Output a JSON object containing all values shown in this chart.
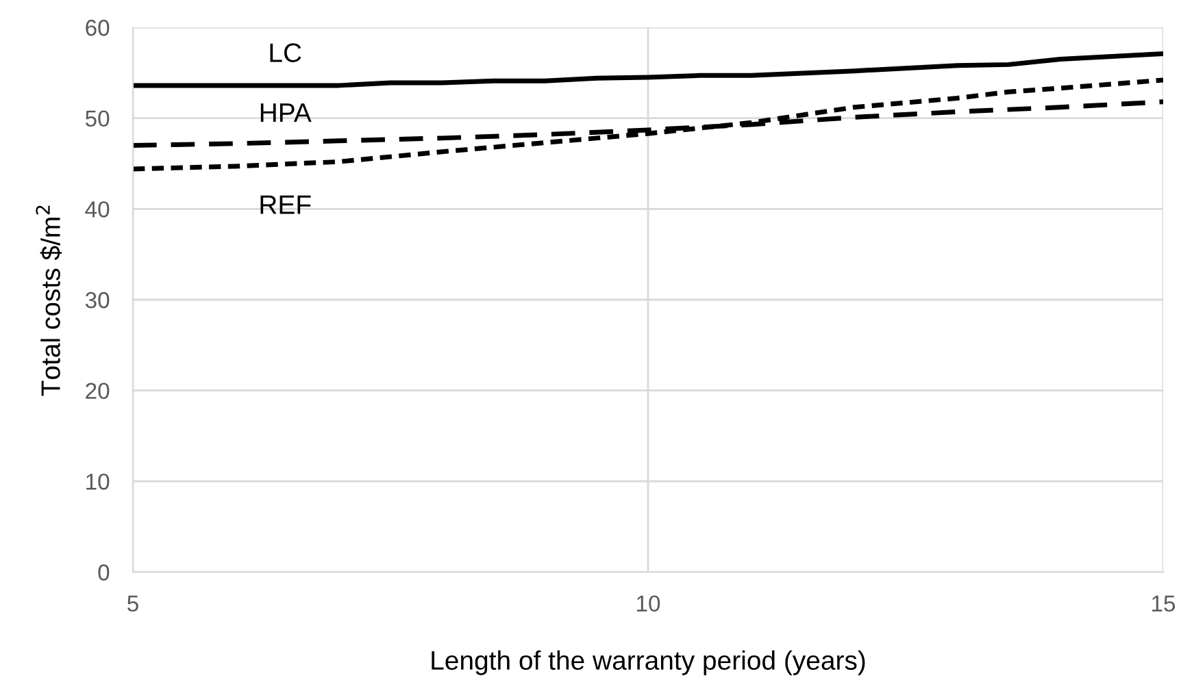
{
  "chart_data": {
    "type": "line",
    "xlabel": "Length of the warranty period (years)",
    "ylabel": "Total costs $/m$^{2}$",
    "xlim": [
      5,
      15
    ],
    "xticks": [
      5,
      10,
      15
    ],
    "ylim": [
      0,
      60
    ],
    "yticks": [
      0,
      10,
      20,
      30,
      40,
      50,
      60
    ],
    "grid": true,
    "legend": false,
    "series": [
      {
        "name": "LC",
        "color": "#000000",
        "line_style": "solid",
        "x": [
          5,
          7,
          7.5,
          8,
          8.5,
          9,
          9.5,
          10,
          10.5,
          11,
          12,
          13,
          13.5,
          14,
          15
        ],
        "values": [
          53.6,
          53.6,
          53.9,
          53.9,
          54.1,
          54.1,
          54.4,
          54.5,
          54.7,
          54.7,
          55.2,
          55.8,
          55.9,
          56.5,
          57.1
        ]
      },
      {
        "name": "HPA",
        "color": "#000000",
        "line_style": "dashed",
        "x": [
          5,
          6,
          7,
          8,
          9,
          10,
          11,
          12,
          13,
          14,
          15
        ],
        "values": [
          47.0,
          47.2,
          47.5,
          47.8,
          48.2,
          48.7,
          49.3,
          50.1,
          50.7,
          51.2,
          51.8
        ]
      },
      {
        "name": "REF",
        "color": "#000000",
        "line_style": "dotted",
        "x": [
          5,
          6,
          7,
          8,
          9,
          10,
          11,
          12,
          13,
          13.5,
          14,
          15
        ],
        "values": [
          44.4,
          44.7,
          45.2,
          46.3,
          47.3,
          48.3,
          49.5,
          51.2,
          52.2,
          52.9,
          53.3,
          54.2
        ]
      }
    ]
  }
}
